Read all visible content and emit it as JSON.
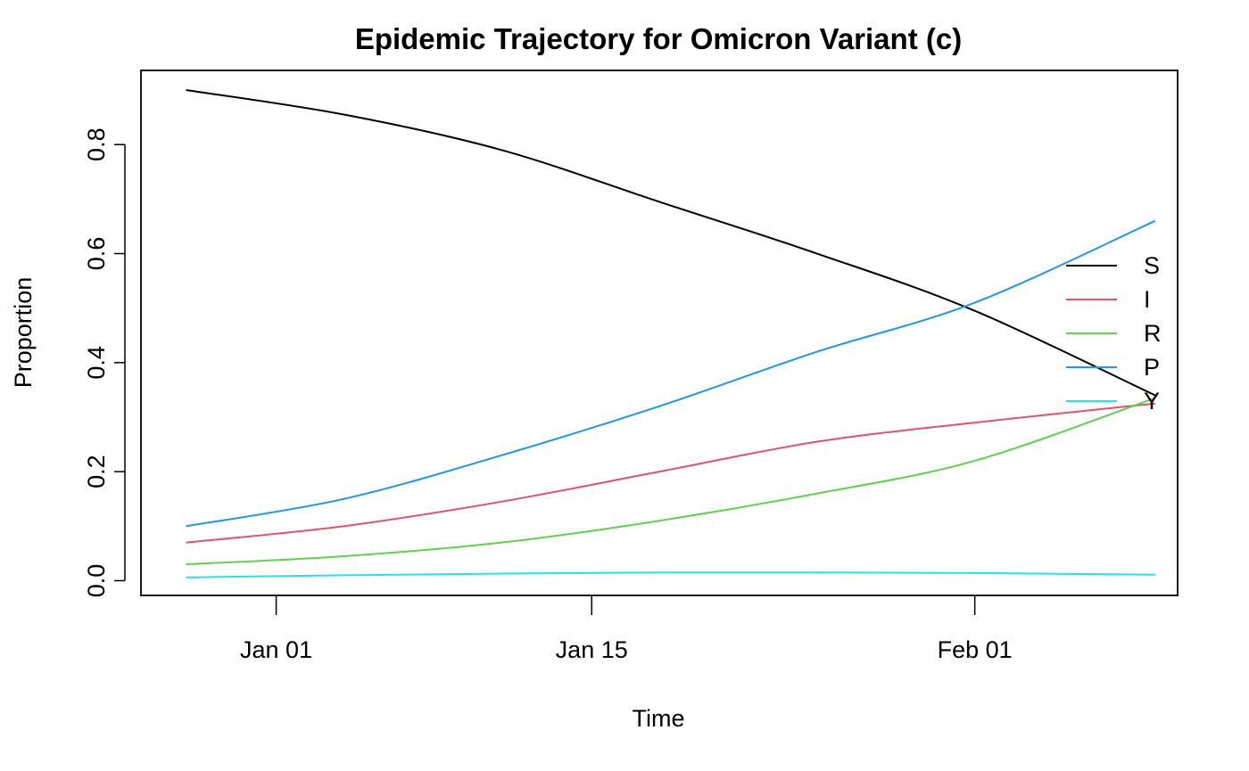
{
  "chart_data": {
    "type": "line",
    "title": "Epidemic Trajectory for Omicron Variant (c)",
    "xlabel": "Time",
    "ylabel": "Proportion",
    "x_start": "2021-12-28",
    "x_end": "2022-02-09",
    "x_ticks": [
      {
        "date": "2022-01-01",
        "label": "Jan 01"
      },
      {
        "date": "2022-01-15",
        "label": "Jan 15"
      },
      {
        "date": "2022-02-01",
        "label": "Feb 01"
      }
    ],
    "y_ticks": [
      {
        "value": 0.0,
        "label": "0.0"
      },
      {
        "value": 0.2,
        "label": "0.2"
      },
      {
        "value": 0.4,
        "label": "0.4"
      },
      {
        "value": 0.6,
        "label": "0.6"
      },
      {
        "value": 0.8,
        "label": "0.8"
      }
    ],
    "xlim": [
      "2021-12-26",
      "2022-02-10"
    ],
    "ylim": [
      -0.027,
      0.936
    ],
    "grid": false,
    "legend_position": "right",
    "x": [
      "2021-12-28",
      "2022-01-04",
      "2022-01-11",
      "2022-01-18",
      "2022-01-25",
      "2022-02-01",
      "2022-02-09"
    ],
    "series": [
      {
        "name": "S",
        "color": "#000000",
        "values": [
          0.9,
          0.855,
          0.79,
          0.695,
          0.6,
          0.495,
          0.34
        ]
      },
      {
        "name": "I",
        "color": "#DF536B",
        "values": [
          0.07,
          0.1,
          0.145,
          0.2,
          0.255,
          0.29,
          0.325
        ]
      },
      {
        "name": "R",
        "color": "#61D04F",
        "values": [
          0.03,
          0.045,
          0.07,
          0.11,
          0.16,
          0.22,
          0.335
        ]
      },
      {
        "name": "P",
        "color": "#2297E6",
        "values": [
          0.1,
          0.15,
          0.23,
          0.32,
          0.42,
          0.51,
          0.66
        ]
      },
      {
        "name": "Y",
        "color": "#28E2E5",
        "values": [
          0.006,
          0.01,
          0.013,
          0.015,
          0.015,
          0.014,
          0.011
        ]
      }
    ]
  }
}
